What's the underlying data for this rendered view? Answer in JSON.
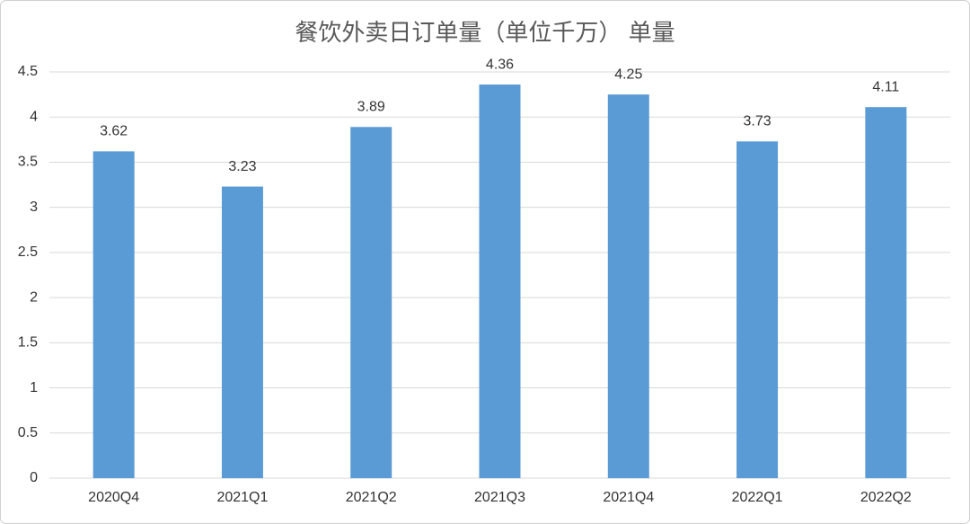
{
  "chart_data": {
    "type": "bar",
    "title": "餐饮外卖日订单量（单位千万） 单量",
    "categories": [
      "2020Q4",
      "2021Q1",
      "2021Q2",
      "2021Q3",
      "2021Q4",
      "2022Q1",
      "2022Q2"
    ],
    "values": [
      3.62,
      3.23,
      3.89,
      4.36,
      4.25,
      3.73,
      4.11
    ],
    "color": "#5b9bd5",
    "ylim": [
      0,
      4.5
    ],
    "yticks": [
      0,
      0.5,
      1,
      1.5,
      2,
      2.5,
      3,
      3.5,
      4,
      4.5
    ],
    "grid": true
  }
}
